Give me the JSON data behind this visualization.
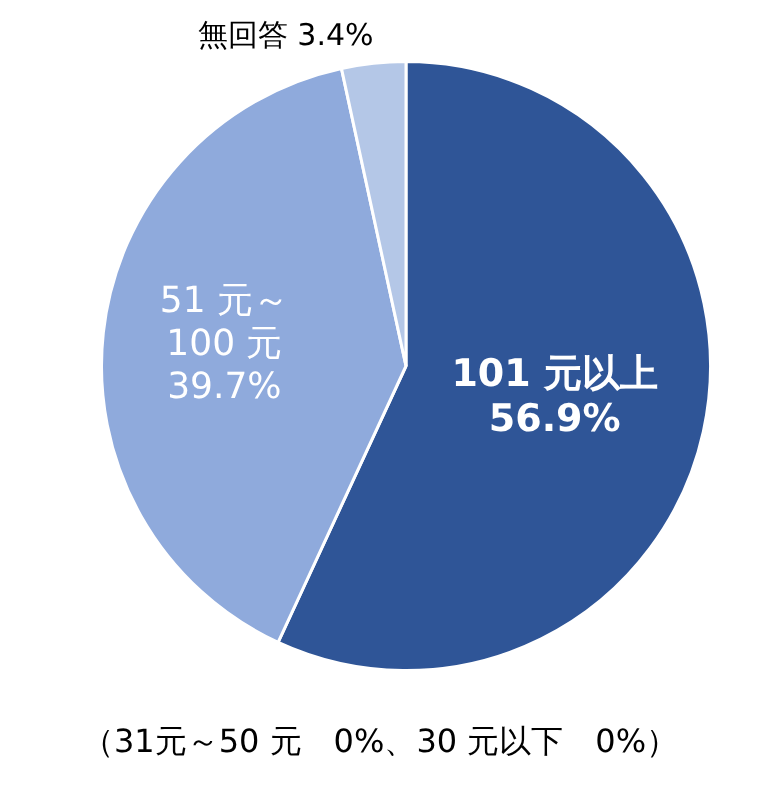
{
  "chart_data": {
    "type": "pie",
    "categories": [
      "101 元以上",
      "51 元～100 元",
      "無回答"
    ],
    "values": [
      56.9,
      39.7,
      3.4
    ],
    "colors": [
      "#2f5597",
      "#8faadc",
      "#b4c7e7"
    ],
    "value_labels": [
      "56.9%",
      "39.7%",
      "3.4%"
    ],
    "legend": false,
    "annotations": [
      "（31元～50 元　0%、30 元以下　0%）"
    ]
  }
}
